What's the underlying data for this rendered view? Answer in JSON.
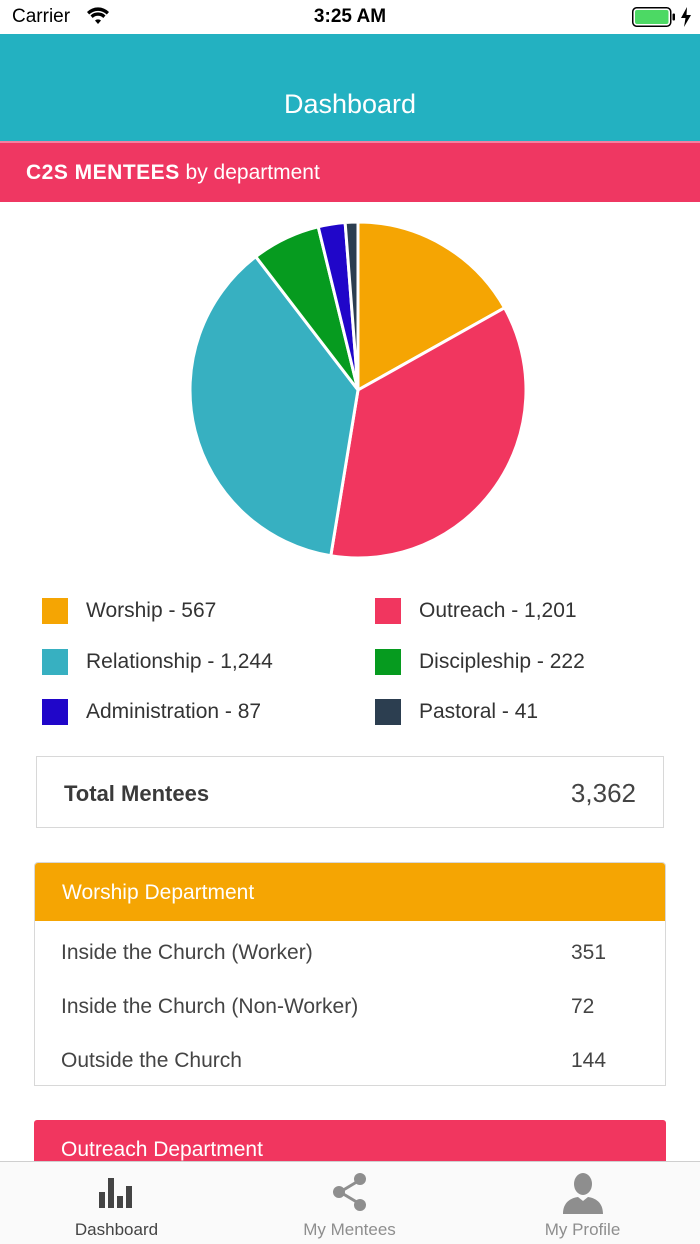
{
  "status_bar": {
    "carrier": "Carrier",
    "time": "3:25 AM"
  },
  "header": {
    "title": "Dashboard"
  },
  "banner": {
    "strong": "C2S MENTEES",
    "rest": " by department"
  },
  "colors": {
    "header": "#23b1c1",
    "accent_pink": "#ef3762",
    "worship": "#f5a503",
    "outreach": "#f1365f",
    "relationship": "#37b0c1",
    "discipleship": "#069b1f",
    "administration": "#2006c9",
    "pastoral": "#2c3e50"
  },
  "chart_data": {
    "type": "pie",
    "categories": [
      "Worship",
      "Outreach",
      "Relationship",
      "Discipleship",
      "Administration",
      "Pastoral"
    ],
    "values": [
      567,
      1201,
      1244,
      222,
      87,
      41
    ],
    "colors": [
      "#f5a503",
      "#f1365f",
      "#37b0c1",
      "#069b1f",
      "#2006c9",
      "#2c3e50"
    ],
    "title": "",
    "legend": "bottom"
  },
  "legend": [
    {
      "label": "Worship - 567",
      "color": "#f5a503"
    },
    {
      "label": "Outreach - 1,201",
      "color": "#f1365f"
    },
    {
      "label": "Relationship - 1,244",
      "color": "#37b0c1"
    },
    {
      "label": "Discipleship - 222",
      "color": "#069b1f"
    },
    {
      "label": "Administration - 87",
      "color": "#2006c9"
    },
    {
      "label": "Pastoral - 41",
      "color": "#2c3e50"
    }
  ],
  "total": {
    "label": "Total Mentees",
    "value": "3,362"
  },
  "departments": [
    {
      "name": "Worship Department",
      "color": "#f5a503",
      "rows": [
        {
          "label": "Inside the Church (Worker)",
          "value": "351"
        },
        {
          "label": "Inside the Church (Non-Worker)",
          "value": "72"
        },
        {
          "label": "Outside the Church",
          "value": "144"
        }
      ]
    },
    {
      "name": "Outreach Department",
      "color": "#f1365f",
      "rows": []
    }
  ],
  "tabs": [
    {
      "label": "Dashboard",
      "icon": "bar-chart-icon",
      "active": true
    },
    {
      "label": "My Mentees",
      "icon": "share-icon",
      "active": false
    },
    {
      "label": "My Profile",
      "icon": "person-icon",
      "active": false
    }
  ]
}
